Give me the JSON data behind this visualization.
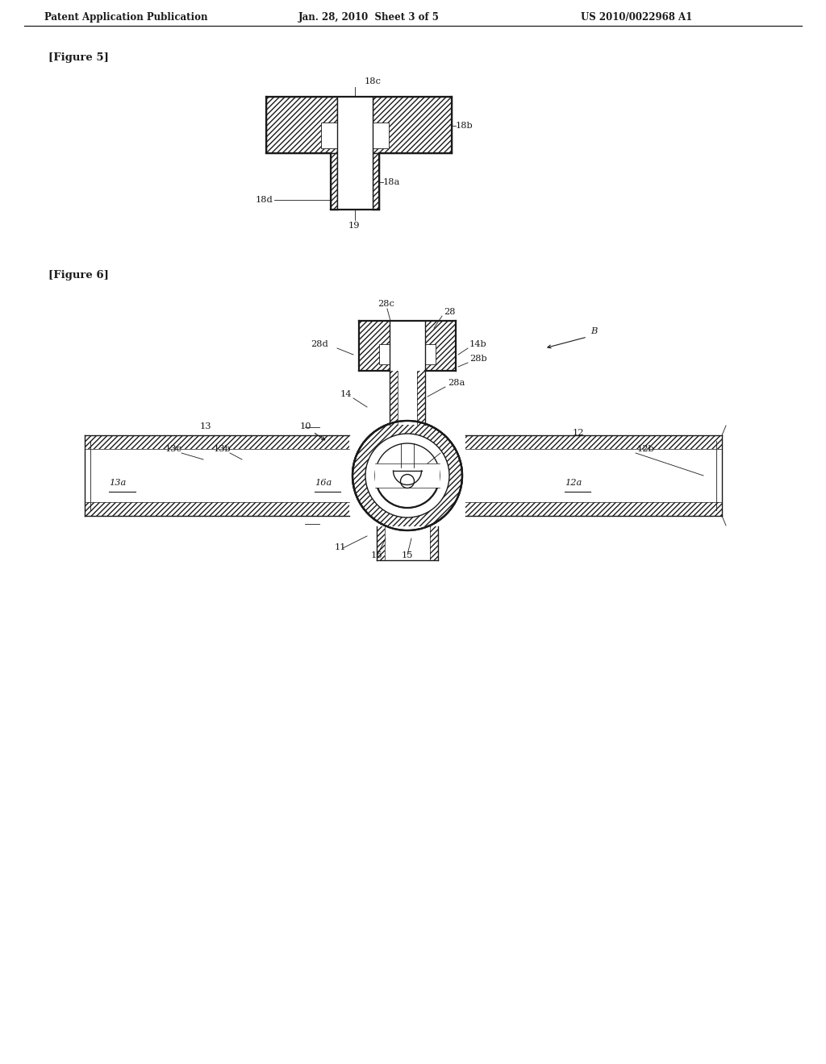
{
  "bg": "#ffffff",
  "lc": "#1a1a1a",
  "header_left": "Patent Application Publication",
  "header_mid": "Jan. 28, 2010  Sheet 3 of 5",
  "header_right": "US 2010/0022968 A1",
  "fig5_label": "[Figure 5]",
  "fig6_label": "[Figure 6]",
  "lw_thin": 0.6,
  "lw_med": 1.0,
  "lw_thick": 1.6,
  "header_fs": 8.5,
  "label_fs": 9.5,
  "annot_fs": 8.2
}
